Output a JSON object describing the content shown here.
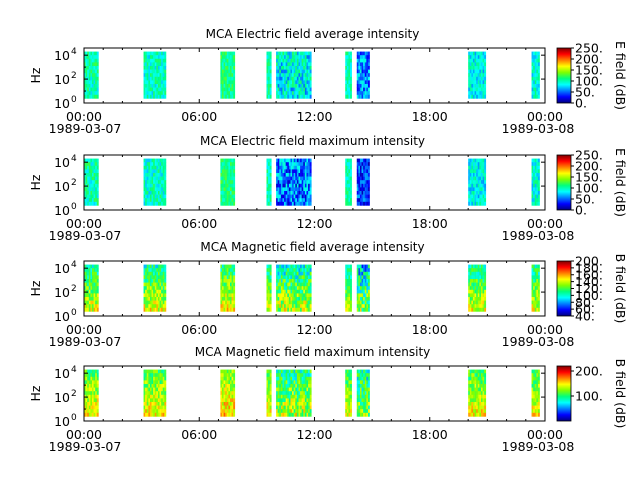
{
  "figure": {
    "x_tick_labels": [
      "00:00",
      "06:00",
      "12:00",
      "18:00",
      "00:00"
    ],
    "x_date_labels": [
      "1989-03-07",
      "1989-03-08"
    ],
    "colormap": [
      "#00007f",
      "#0000ff",
      "#007fff",
      "#00ffff",
      "#00ff7f",
      "#7fff00",
      "#ffff00",
      "#ff7f00",
      "#ff0000",
      "#7f0000"
    ]
  },
  "chart_data": [
    {
      "type": "heatmap",
      "title": "MCA  Electric field average intensity",
      "ylabel": "Hz",
      "y_ticks": [
        {
          "base": "10",
          "exp": "0"
        },
        {
          "base": "10",
          "exp": "2"
        },
        {
          "base": "10",
          "exp": "4"
        }
      ],
      "y_log_range": [
        0,
        4.6
      ],
      "x_range_hours": [
        0,
        24
      ],
      "colorbar_label": "E field (dB)",
      "colorbar_range": [
        0,
        250
      ],
      "colorbar_ticks": [
        "0.",
        "50.",
        "100.",
        "150.",
        "200.",
        "250."
      ],
      "value_range": [
        0,
        250
      ],
      "blocks": [
        {
          "start": 0.0,
          "end": 0.7,
          "base": 100,
          "var": 25
        },
        {
          "start": 3.1,
          "end": 4.2,
          "base": 95,
          "var": 25
        },
        {
          "start": 7.1,
          "end": 7.8,
          "base": 110,
          "var": 20
        },
        {
          "start": 9.5,
          "end": 9.7,
          "base": 100,
          "var": 20
        },
        {
          "start": 10.0,
          "end": 11.8,
          "base": 85,
          "var": 35
        },
        {
          "start": 13.6,
          "end": 13.9,
          "base": 100,
          "var": 20
        },
        {
          "start": 14.2,
          "end": 14.8,
          "base": 60,
          "var": 35
        },
        {
          "start": 20.0,
          "end": 20.9,
          "base": 85,
          "var": 25
        },
        {
          "start": 23.3,
          "end": 23.7,
          "base": 90,
          "var": 25
        }
      ]
    },
    {
      "type": "heatmap",
      "title": "MCA  Electric field maximum intensity",
      "ylabel": "Hz",
      "y_ticks": [
        {
          "base": "10",
          "exp": "0"
        },
        {
          "base": "10",
          "exp": "2"
        },
        {
          "base": "10",
          "exp": "4"
        }
      ],
      "y_log_range": [
        0,
        4.6
      ],
      "x_range_hours": [
        0,
        24
      ],
      "colorbar_label": "E field (dB)",
      "colorbar_range": [
        0,
        250
      ],
      "colorbar_ticks": [
        "0.",
        "50.",
        "100.",
        "150.",
        "200.",
        "250."
      ],
      "value_range": [
        0,
        250
      ],
      "blocks": [
        {
          "start": 0.0,
          "end": 0.7,
          "base": 100,
          "var": 25
        },
        {
          "start": 3.1,
          "end": 4.2,
          "base": 95,
          "var": 25
        },
        {
          "start": 7.1,
          "end": 7.8,
          "base": 110,
          "var": 20
        },
        {
          "start": 9.5,
          "end": 9.7,
          "base": 100,
          "var": 20
        },
        {
          "start": 10.0,
          "end": 11.8,
          "base": 55,
          "var": 40
        },
        {
          "start": 13.6,
          "end": 13.9,
          "base": 100,
          "var": 20
        },
        {
          "start": 14.2,
          "end": 14.8,
          "base": 40,
          "var": 30
        },
        {
          "start": 20.0,
          "end": 20.9,
          "base": 85,
          "var": 25
        },
        {
          "start": 23.3,
          "end": 23.7,
          "base": 90,
          "var": 25
        }
      ]
    },
    {
      "type": "heatmap",
      "title": "MCA  Magnetic field average intensity",
      "ylabel": "Hz",
      "y_ticks": [
        {
          "base": "10",
          "exp": "0"
        },
        {
          "base": "10",
          "exp": "2"
        },
        {
          "base": "10",
          "exp": "4"
        }
      ],
      "y_log_range": [
        0,
        4.6
      ],
      "x_range_hours": [
        0,
        24
      ],
      "colorbar_label": "B field (dB)",
      "colorbar_range": [
        40,
        200
      ],
      "colorbar_ticks": [
        "40.",
        "60.",
        "80.",
        "100.",
        "120.",
        "140.",
        "160.",
        "180.",
        "200."
      ],
      "value_range": [
        40,
        200
      ],
      "blocks": [
        {
          "start": 0.0,
          "end": 0.7,
          "base": 120,
          "var": 20
        },
        {
          "start": 3.1,
          "end": 4.2,
          "base": 120,
          "var": 20
        },
        {
          "start": 7.1,
          "end": 7.8,
          "base": 125,
          "var": 20
        },
        {
          "start": 9.5,
          "end": 9.7,
          "base": 120,
          "var": 15
        },
        {
          "start": 10.0,
          "end": 11.8,
          "base": 115,
          "var": 25
        },
        {
          "start": 13.6,
          "end": 13.9,
          "base": 115,
          "var": 15
        },
        {
          "start": 14.2,
          "end": 14.8,
          "base": 105,
          "var": 30
        },
        {
          "start": 20.0,
          "end": 20.9,
          "base": 120,
          "var": 20
        },
        {
          "start": 23.3,
          "end": 23.7,
          "base": 120,
          "var": 20
        }
      ]
    },
    {
      "type": "heatmap",
      "title": "MCA  Magnetic field maximum intensity",
      "ylabel": "Hz",
      "y_ticks": [
        {
          "base": "10",
          "exp": "0"
        },
        {
          "base": "10",
          "exp": "2"
        },
        {
          "base": "10",
          "exp": "4"
        }
      ],
      "y_log_range": [
        0,
        4.6
      ],
      "x_range_hours": [
        0,
        24
      ],
      "colorbar_label": "B field (dB)",
      "colorbar_range": [
        0,
        220
      ],
      "colorbar_ticks": [
        "100.",
        "200."
      ],
      "colorbar_tick_values": [
        100,
        200
      ],
      "value_range": [
        0,
        220
      ],
      "blocks": [
        {
          "start": 0.0,
          "end": 0.7,
          "base": 125,
          "var": 25
        },
        {
          "start": 3.1,
          "end": 4.2,
          "base": 125,
          "var": 25
        },
        {
          "start": 7.1,
          "end": 7.8,
          "base": 135,
          "var": 25
        },
        {
          "start": 9.5,
          "end": 9.7,
          "base": 125,
          "var": 20
        },
        {
          "start": 10.0,
          "end": 11.8,
          "base": 110,
          "var": 35
        },
        {
          "start": 13.6,
          "end": 13.9,
          "base": 120,
          "var": 20
        },
        {
          "start": 14.2,
          "end": 14.8,
          "base": 100,
          "var": 35
        },
        {
          "start": 20.0,
          "end": 20.9,
          "base": 125,
          "var": 25
        },
        {
          "start": 23.3,
          "end": 23.7,
          "base": 125,
          "var": 25
        }
      ]
    }
  ]
}
